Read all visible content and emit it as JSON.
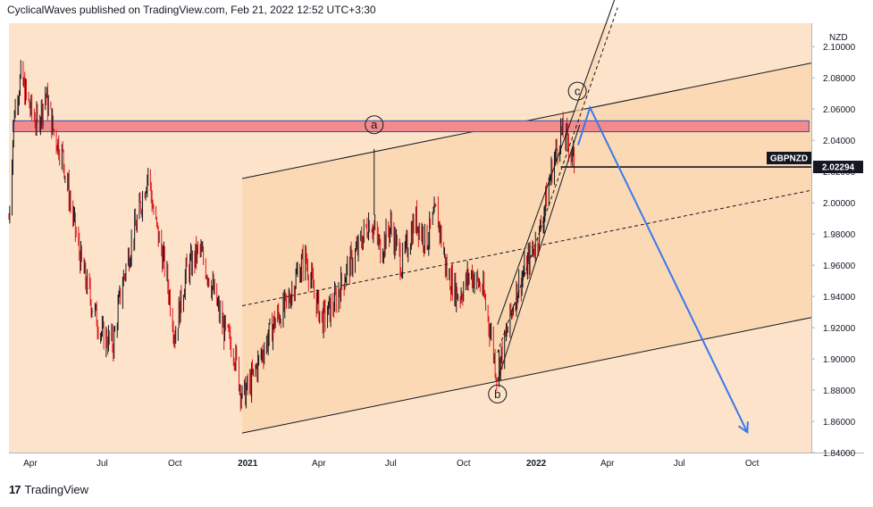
{
  "header": {
    "text": "CyclicalWaves published on TradingView.com, Feb 21, 2022 12:52 UTC+3:30"
  },
  "footer": {
    "logo_glyph": "17",
    "brand": "TradingView"
  },
  "colors": {
    "background": "#fce3c9",
    "channel_fill": "#fbd6ad",
    "resistance_zone": "#f28b8b",
    "resistance_border": "#3a4fa8",
    "candle_up": "#131722",
    "candle_down": "#e0151a",
    "projection": "#3a78ee"
  },
  "chart_data": {
    "type": "line",
    "symbol_label": "GBPNZD",
    "currency": "NZD",
    "y_unit": "NZD",
    "grid": false,
    "last_price": 2.02294,
    "last_price_label": "2.02294",
    "ylim": [
      1.84,
      2.115
    ],
    "y_ticks": [
      "2.10000",
      "2.08000",
      "2.06000",
      "2.04000",
      "2.02000",
      "2.00000",
      "1.98000",
      "1.96000",
      "1.94000",
      "1.92000",
      "1.90000",
      "1.88000",
      "1.86000",
      "1.84000"
    ],
    "x_ticks": [
      {
        "label": "Apr",
        "date": "2020-04-01",
        "bold": false
      },
      {
        "label": "Jul",
        "date": "2020-07-01",
        "bold": false
      },
      {
        "label": "Oct",
        "date": "2020-10-01",
        "bold": false
      },
      {
        "label": "2021",
        "date": "2021-01-01",
        "bold": true
      },
      {
        "label": "Apr",
        "date": "2021-04-01",
        "bold": false
      },
      {
        "label": "Jul",
        "date": "2021-07-01",
        "bold": false
      },
      {
        "label": "Oct",
        "date": "2021-10-01",
        "bold": false
      },
      {
        "label": "2022",
        "date": "2022-01-01",
        "bold": true
      },
      {
        "label": "Apr",
        "date": "2022-04-01",
        "bold": false
      },
      {
        "label": "Jul",
        "date": "2022-07-01",
        "bold": false
      },
      {
        "label": "Oct",
        "date": "2022-10-01",
        "bold": false
      }
    ],
    "xlim": [
      "2020-03-05",
      "2022-12-15"
    ],
    "price_path": [
      [
        "2020-03-05",
        1.99
      ],
      [
        "2020-03-12",
        2.06
      ],
      [
        "2020-03-20",
        2.08
      ],
      [
        "2020-04-01",
        2.06
      ],
      [
        "2020-04-10",
        2.05
      ],
      [
        "2020-04-20",
        2.07
      ],
      [
        "2020-05-01",
        2.045
      ],
      [
        "2020-05-12",
        2.03
      ],
      [
        "2020-05-25",
        1.99
      ],
      [
        "2020-06-05",
        1.96
      ],
      [
        "2020-06-18",
        1.935
      ],
      [
        "2020-07-01",
        1.915
      ],
      [
        "2020-07-15",
        1.91
      ],
      [
        "2020-07-25",
        1.945
      ],
      [
        "2020-08-05",
        1.97
      ],
      [
        "2020-08-15",
        1.99
      ],
      [
        "2020-08-28",
        2.02
      ],
      [
        "2020-09-05",
        1.99
      ],
      [
        "2020-09-20",
        1.955
      ],
      [
        "2020-10-01",
        1.915
      ],
      [
        "2020-10-15",
        1.955
      ],
      [
        "2020-11-01",
        1.97
      ],
      [
        "2020-11-15",
        1.95
      ],
      [
        "2020-12-01",
        1.92
      ],
      [
        "2020-12-15",
        1.905
      ],
      [
        "2020-12-25",
        1.875
      ],
      [
        "2021-01-05",
        1.885
      ],
      [
        "2021-01-20",
        1.905
      ],
      [
        "2021-02-05",
        1.925
      ],
      [
        "2021-02-20",
        1.935
      ],
      [
        "2021-03-05",
        1.955
      ],
      [
        "2021-03-15",
        1.965
      ],
      [
        "2021-03-25",
        1.945
      ],
      [
        "2021-04-05",
        1.925
      ],
      [
        "2021-04-20",
        1.935
      ],
      [
        "2021-05-05",
        1.955
      ],
      [
        "2021-05-20",
        1.97
      ],
      [
        "2021-06-05",
        1.99
      ],
      [
        "2021-06-18",
        1.97
      ],
      [
        "2021-07-01",
        1.985
      ],
      [
        "2021-07-15",
        1.96
      ],
      [
        "2021-08-01",
        1.99
      ],
      [
        "2021-08-15",
        1.975
      ],
      [
        "2021-08-28",
        1.995
      ],
      [
        "2021-09-10",
        1.955
      ],
      [
        "2021-09-25",
        1.94
      ],
      [
        "2021-10-10",
        1.955
      ],
      [
        "2021-10-25",
        1.945
      ],
      [
        "2021-11-05",
        1.915
      ],
      [
        "2021-11-12",
        1.89
      ],
      [
        "2021-11-22",
        1.91
      ],
      [
        "2021-12-05",
        1.94
      ],
      [
        "2021-12-20",
        1.96
      ],
      [
        "2022-01-05",
        1.98
      ],
      [
        "2022-01-20",
        2.02
      ],
      [
        "2022-02-01",
        2.045
      ],
      [
        "2022-02-10",
        2.04
      ],
      [
        "2022-02-20",
        2.022
      ]
    ],
    "resistance_zone": {
      "x0": "2020-03-10",
      "x1": "2022-12-12",
      "y0": 2.0455,
      "y1": 2.0525
    },
    "big_channel": {
      "upper": [
        [
          "2020-12-25",
          2.0155
        ],
        [
          "2022-12-15",
          2.0895
        ]
      ],
      "lower": [
        [
          "2020-12-25",
          1.8525
        ],
        [
          "2022-12-15",
          1.9265
        ]
      ],
      "mid": [
        [
          "2020-12-25",
          1.934
        ],
        [
          "2022-12-15",
          2.008
        ]
      ]
    },
    "small_channel": {
      "lower": [
        [
          "2021-11-13",
          1.886
        ],
        [
          "2022-02-25",
          2.05
        ]
      ],
      "upper": [
        [
          "2021-11-13",
          1.922
        ],
        [
          "2022-04-10",
          2.13
        ]
      ],
      "mid": [
        [
          "2021-11-13",
          1.904
        ],
        [
          "2022-04-14",
          2.125
        ]
      ]
    },
    "wave_labels": [
      {
        "label": "a",
        "date": "2021-06-10",
        "price": 2.05
      },
      {
        "label": "b",
        "date": "2021-11-13",
        "price": 1.8775
      },
      {
        "label": "c",
        "date": "2022-02-22",
        "price": 2.0715
      }
    ],
    "wave_a_wick": [
      [
        "2021-06-10",
        2.0345
      ],
      [
        "2021-06-10",
        1.992
      ]
    ],
    "projection": [
      [
        "2022-02-23",
        2.037
      ],
      [
        "2022-03-10",
        2.061
      ],
      [
        "2022-09-25",
        1.853
      ]
    ],
    "price_line_start": "2022-02-01"
  }
}
